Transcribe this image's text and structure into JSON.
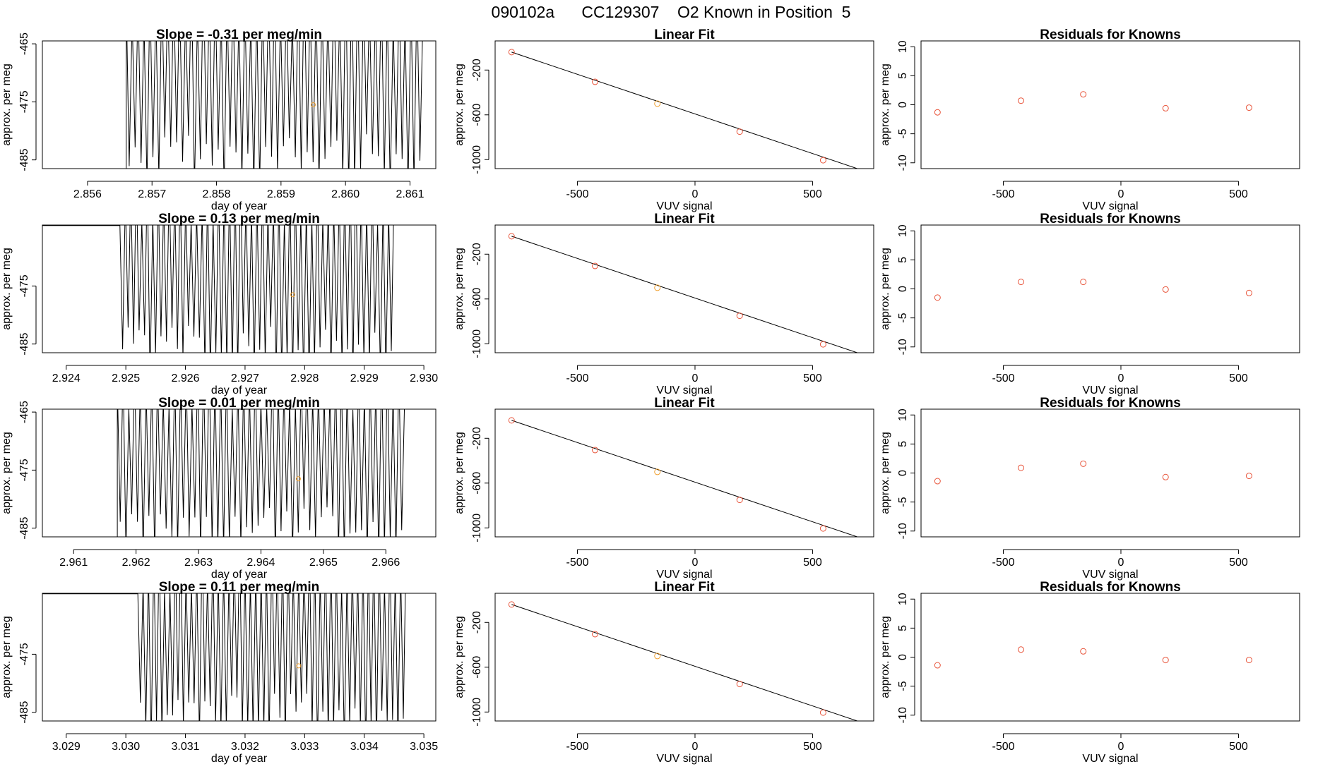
{
  "figure": {
    "title": "090102a      CC129307    O2 Known in Position  5"
  },
  "colors": {
    "trace": "#000000",
    "known_point": "#e8543a",
    "unknown_point": "#f0a030",
    "axis": "#000000"
  },
  "chart_data": [
    {
      "type": "line",
      "panel": "time-series",
      "row": 1,
      "title": "Slope =  -0.31  per meg/min",
      "xlabel": "day of year",
      "ylabel": "approx. per meg",
      "xlim": [
        2.8553,
        2.8614
      ],
      "ylim": [
        -486.5,
        -464.5
      ],
      "xticks": [
        2.856,
        2.857,
        2.858,
        2.859,
        2.86,
        2.861
      ],
      "xtick_labels": [
        "2.856",
        "2.857",
        "2.858",
        "2.859",
        "2.860",
        "2.861"
      ],
      "yticks": [
        -465,
        -475,
        -485
      ],
      "ytick_labels": [
        "-465",
        "-475",
        "-485"
      ],
      "trace": {
        "x_start": 2.8566,
        "x_end": 2.8612,
        "pre_level": -486.5,
        "cycles": 50,
        "center": -471,
        "amplitude": 17
      },
      "marker": {
        "x": 2.8595,
        "y": -475.5
      }
    },
    {
      "type": "line",
      "panel": "time-series",
      "row": 2,
      "title": "Slope =  0.13  per meg/min",
      "xlabel": "day of year",
      "ylabel": "approx. per meg",
      "xlim": [
        2.9236,
        2.9302
      ],
      "ylim": [
        -486.5,
        -464.5
      ],
      "xticks": [
        2.924,
        2.925,
        2.926,
        2.927,
        2.928,
        2.929,
        2.93
      ],
      "xtick_labels": [
        "2.924",
        "2.925",
        "2.926",
        "2.927",
        "2.928",
        "2.929",
        "2.930"
      ],
      "yticks": [
        -475,
        -485
      ],
      "ytick_labels": [
        "-475",
        "-485"
      ],
      "trace": {
        "x_start": 2.9249,
        "x_end": 2.9295,
        "pre_level": -464.6,
        "cycles": 50,
        "center": -473,
        "amplitude": 16
      },
      "marker": {
        "x": 2.9278,
        "y": -476.5
      }
    },
    {
      "type": "line",
      "panel": "time-series",
      "row": 3,
      "title": "Slope =  0.01  per meg/min",
      "xlabel": "day of year",
      "ylabel": "approx. per meg",
      "xlim": [
        2.9605,
        2.9668
      ],
      "ylim": [
        -486.5,
        -464.5
      ],
      "xticks": [
        2.961,
        2.962,
        2.963,
        2.964,
        2.965,
        2.966
      ],
      "xtick_labels": [
        "2.961",
        "2.962",
        "2.963",
        "2.964",
        "2.965",
        "2.966"
      ],
      "yticks": [
        -465,
        -475,
        -485
      ],
      "ytick_labels": [
        "-465",
        "-475",
        "-485"
      ],
      "trace": {
        "x_start": 2.9617,
        "x_end": 2.9663,
        "pre_level": -486.5,
        "cycles": 50,
        "center": -473,
        "amplitude": 15
      },
      "marker": {
        "x": 2.9646,
        "y": -476.5
      }
    },
    {
      "type": "line",
      "panel": "time-series",
      "row": 4,
      "title": "Slope =  0.11  per meg/min",
      "xlabel": "day of year",
      "ylabel": "approx. per meg",
      "xlim": [
        3.0286,
        3.0352
      ],
      "ylim": [
        -486.5,
        -464.5
      ],
      "xticks": [
        3.029,
        3.03,
        3.031,
        3.032,
        3.033,
        3.034,
        3.035
      ],
      "xtick_labels": [
        "3.029",
        "3.030",
        "3.031",
        "3.032",
        "3.033",
        "3.034",
        "3.035"
      ],
      "yticks": [
        -475,
        -485
      ],
      "ytick_labels": [
        "-475",
        "-485"
      ],
      "trace": {
        "x_start": 3.0302,
        "x_end": 3.0347,
        "pre_level": -464.6,
        "cycles": 50,
        "center": -473,
        "amplitude": 16
      },
      "marker": {
        "x": 3.0329,
        "y": -477
      }
    },
    {
      "type": "scatter",
      "panel": "linear-fit",
      "row": 1,
      "title": "Linear Fit",
      "xlabel": "VUV signal",
      "ylabel": "approx. per meg",
      "xlim": [
        -850,
        760
      ],
      "ylim": [
        -1080,
        60
      ],
      "xticks": [
        -500,
        0,
        500
      ],
      "xtick_labels": [
        "-500",
        "0",
        "500"
      ],
      "yticks": [
        -200,
        -600,
        -1000
      ],
      "ytick_labels": [
        "-200",
        "-600",
        "-1000"
      ],
      "points": [
        {
          "x": -780,
          "y": -40,
          "kind": "known"
        },
        {
          "x": -425,
          "y": -305,
          "kind": "known"
        },
        {
          "x": -160,
          "y": -500,
          "kind": "unknown"
        },
        {
          "x": 190,
          "y": -750,
          "kind": "known"
        },
        {
          "x": 545,
          "y": -1005,
          "kind": "known"
        }
      ],
      "fit_line": {
        "x": [
          -780,
          690
        ],
        "y": [
          -40,
          -1080
        ]
      }
    },
    {
      "type": "scatter",
      "panel": "linear-fit",
      "row": 2,
      "title": "Linear Fit",
      "xlabel": "VUV signal",
      "ylabel": "approx. per meg",
      "xlim": [
        -850,
        760
      ],
      "ylim": [
        -1080,
        60
      ],
      "xticks": [
        -500,
        0,
        500
      ],
      "xtick_labels": [
        "-500",
        "0",
        "500"
      ],
      "yticks": [
        -200,
        -600,
        -1000
      ],
      "ytick_labels": [
        "-200",
        "-600",
        "-1000"
      ],
      "points": [
        {
          "x": -780,
          "y": -40,
          "kind": "known"
        },
        {
          "x": -425,
          "y": -305,
          "kind": "known"
        },
        {
          "x": -160,
          "y": -500,
          "kind": "unknown"
        },
        {
          "x": 190,
          "y": -750,
          "kind": "known"
        },
        {
          "x": 545,
          "y": -1005,
          "kind": "known"
        }
      ],
      "fit_line": {
        "x": [
          -780,
          690
        ],
        "y": [
          -40,
          -1080
        ]
      }
    },
    {
      "type": "scatter",
      "panel": "linear-fit",
      "row": 3,
      "title": "Linear Fit",
      "xlabel": "VUV signal",
      "ylabel": "approx. per meg",
      "xlim": [
        -850,
        760
      ],
      "ylim": [
        -1080,
        60
      ],
      "xticks": [
        -500,
        0,
        500
      ],
      "xtick_labels": [
        "-500",
        "0",
        "500"
      ],
      "yticks": [
        -200,
        -600,
        -1000
      ],
      "ytick_labels": [
        "-200",
        "-600",
        "-1000"
      ],
      "points": [
        {
          "x": -780,
          "y": -40,
          "kind": "known"
        },
        {
          "x": -425,
          "y": -305,
          "kind": "known"
        },
        {
          "x": -160,
          "y": -500,
          "kind": "unknown"
        },
        {
          "x": 190,
          "y": -750,
          "kind": "known"
        },
        {
          "x": 545,
          "y": -1005,
          "kind": "known"
        }
      ],
      "fit_line": {
        "x": [
          -780,
          690
        ],
        "y": [
          -40,
          -1080
        ]
      }
    },
    {
      "type": "scatter",
      "panel": "linear-fit",
      "row": 4,
      "title": "Linear Fit",
      "xlabel": "VUV signal",
      "ylabel": "approx. per meg",
      "xlim": [
        -850,
        760
      ],
      "ylim": [
        -1080,
        60
      ],
      "xticks": [
        -500,
        0,
        500
      ],
      "xtick_labels": [
        "-500",
        "0",
        "500"
      ],
      "yticks": [
        -200,
        -600,
        -1000
      ],
      "ytick_labels": [
        "-200",
        "-600",
        "-1000"
      ],
      "points": [
        {
          "x": -780,
          "y": -40,
          "kind": "known"
        },
        {
          "x": -425,
          "y": -305,
          "kind": "known"
        },
        {
          "x": -160,
          "y": -500,
          "kind": "unknown"
        },
        {
          "x": 190,
          "y": -750,
          "kind": "known"
        },
        {
          "x": 545,
          "y": -1005,
          "kind": "known"
        }
      ],
      "fit_line": {
        "x": [
          -780,
          690
        ],
        "y": [
          -40,
          -1080
        ]
      }
    },
    {
      "type": "scatter",
      "panel": "residuals",
      "row": 1,
      "title": "Residuals for Knowns",
      "xlabel": "VUV signal",
      "ylabel": "approx. per meg",
      "xlim": [
        -850,
        760
      ],
      "ylim": [
        -11,
        11
      ],
      "xticks": [
        -500,
        0,
        500
      ],
      "xtick_labels": [
        "-500",
        "0",
        "500"
      ],
      "yticks": [
        10,
        5,
        0,
        -5,
        -10
      ],
      "ytick_labels": [
        "10",
        "5",
        "0",
        "-5",
        "-10"
      ],
      "points": [
        {
          "x": -780,
          "y": -1.3
        },
        {
          "x": -425,
          "y": 0.7
        },
        {
          "x": -160,
          "y": 1.8
        },
        {
          "x": 190,
          "y": -0.6
        },
        {
          "x": 545,
          "y": -0.5
        }
      ]
    },
    {
      "type": "scatter",
      "panel": "residuals",
      "row": 2,
      "title": "Residuals for Knowns",
      "xlabel": "VUV signal",
      "ylabel": "approx. per meg",
      "xlim": [
        -850,
        760
      ],
      "ylim": [
        -11,
        11
      ],
      "xticks": [
        -500,
        0,
        500
      ],
      "xtick_labels": [
        "-500",
        "0",
        "500"
      ],
      "yticks": [
        10,
        5,
        0,
        -5,
        -10
      ],
      "ytick_labels": [
        "10",
        "5",
        "0",
        "-5",
        "-10"
      ],
      "points": [
        {
          "x": -780,
          "y": -1.5
        },
        {
          "x": -425,
          "y": 1.2
        },
        {
          "x": -160,
          "y": 1.2
        },
        {
          "x": 190,
          "y": -0.1
        },
        {
          "x": 545,
          "y": -0.7
        }
      ]
    },
    {
      "type": "scatter",
      "panel": "residuals",
      "row": 3,
      "title": "Residuals for Knowns",
      "xlabel": "VUV signal",
      "ylabel": "approx. per meg",
      "xlim": [
        -850,
        760
      ],
      "ylim": [
        -11,
        11
      ],
      "xticks": [
        -500,
        0,
        500
      ],
      "xtick_labels": [
        "-500",
        "0",
        "500"
      ],
      "yticks": [
        10,
        5,
        0,
        -5,
        -10
      ],
      "ytick_labels": [
        "10",
        "5",
        "0",
        "-5",
        "-10"
      ],
      "points": [
        {
          "x": -780,
          "y": -1.4
        },
        {
          "x": -425,
          "y": 0.9
        },
        {
          "x": -160,
          "y": 1.6
        },
        {
          "x": 190,
          "y": -0.7
        },
        {
          "x": 545,
          "y": -0.5
        }
      ]
    },
    {
      "type": "scatter",
      "panel": "residuals",
      "row": 4,
      "title": "Residuals for Knowns",
      "xlabel": "VUV signal",
      "ylabel": "approx. per meg",
      "xlim": [
        -850,
        760
      ],
      "ylim": [
        -11,
        11
      ],
      "xticks": [
        -500,
        0,
        500
      ],
      "xtick_labels": [
        "-500",
        "0",
        "500"
      ],
      "yticks": [
        10,
        5,
        0,
        -5,
        -10
      ],
      "ytick_labels": [
        "10",
        "5",
        "0",
        "-5",
        "-10"
      ],
      "points": [
        {
          "x": -780,
          "y": -1.4
        },
        {
          "x": -425,
          "y": 1.3
        },
        {
          "x": -160,
          "y": 1.0
        },
        {
          "x": 190,
          "y": -0.5
        },
        {
          "x": 545,
          "y": -0.5
        }
      ]
    }
  ]
}
